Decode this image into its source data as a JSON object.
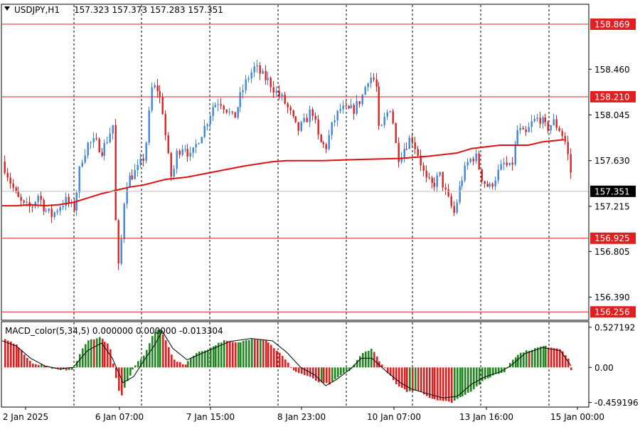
{
  "chart_data": {
    "type": "candlestick",
    "header": {
      "symbol": "USDJPY,H1",
      "ohlc": "157.323 157.373 157.283 157.351"
    },
    "price_axis": {
      "ticks": [
        "158.460",
        "158.045",
        "157.630",
        "157.215",
        "156.805",
        "156.390"
      ],
      "ylim": [
        156.18,
        159.05
      ]
    },
    "time_axis": {
      "labels": [
        "2 Jan 2025",
        "6 Jan 07:00",
        "7 Jan 15:00",
        "8 Jan 23:00",
        "10 Jan 07:00",
        "13 Jan 16:00",
        "15 Jan 00:00"
      ]
    },
    "levels": [
      {
        "value": 158.869,
        "label": "158.869"
      },
      {
        "value": 158.21,
        "label": "158.210"
      },
      {
        "value": 156.925,
        "label": "156.925"
      },
      {
        "value": 156.256,
        "label": "156.256"
      }
    ],
    "current_price": {
      "value": 157.351,
      "label": "157.351"
    },
    "colors": {
      "bull": "#3d85e0",
      "bear": "#e02020",
      "level": "#e02020",
      "ma": "#dd1111",
      "macd_up": "#1a8c1a",
      "macd_down": "#e02020",
      "signal": "#000000",
      "grid": "#000000"
    },
    "ma_points": [
      [
        0,
        157.22
      ],
      [
        20,
        157.22
      ],
      [
        40,
        157.23
      ],
      [
        60,
        157.22
      ],
      [
        80,
        157.23
      ],
      [
        100,
        157.25
      ],
      [
        120,
        157.29
      ],
      [
        140,
        157.33
      ],
      [
        160,
        157.36
      ],
      [
        180,
        157.39
      ],
      [
        200,
        157.41
      ],
      [
        230,
        157.46
      ],
      [
        260,
        157.48
      ],
      [
        300,
        157.53
      ],
      [
        340,
        157.58
      ],
      [
        380,
        157.62
      ],
      [
        400,
        157.63
      ],
      [
        450,
        157.63
      ],
      [
        500,
        157.64
      ],
      [
        560,
        157.65
      ],
      [
        600,
        157.67
      ],
      [
        640,
        157.7
      ],
      [
        660,
        157.74
      ],
      [
        700,
        157.77
      ],
      [
        740,
        157.77
      ],
      [
        760,
        157.8
      ],
      [
        790,
        157.82
      ]
    ],
    "price_path": [
      [
        0,
        157.62
      ],
      [
        10,
        157.45
      ],
      [
        20,
        157.3
      ],
      [
        30,
        157.22
      ],
      [
        40,
        157.2
      ],
      [
        50,
        157.32
      ],
      [
        60,
        157.18
      ],
      [
        70,
        157.13
      ],
      [
        80,
        157.22
      ],
      [
        90,
        157.27
      ],
      [
        100,
        157.18
      ],
      [
        105,
        157.38
      ],
      [
        110,
        157.62
      ],
      [
        120,
        157.78
      ],
      [
        130,
        157.8
      ],
      [
        140,
        157.72
      ],
      [
        150,
        157.86
      ],
      [
        155,
        157.98
      ],
      [
        158,
        157.2
      ],
      [
        162,
        156.7
      ],
      [
        165,
        156.55
      ],
      [
        168,
        157.15
      ],
      [
        175,
        157.45
      ],
      [
        190,
        157.55
      ],
      [
        200,
        157.68
      ],
      [
        205,
        158.0
      ],
      [
        210,
        158.3
      ],
      [
        218,
        158.28
      ],
      [
        225,
        158.1
      ],
      [
        232,
        157.7
      ],
      [
        238,
        157.45
      ],
      [
        245,
        157.7
      ],
      [
        255,
        157.78
      ],
      [
        265,
        157.65
      ],
      [
        275,
        157.82
      ],
      [
        285,
        157.95
      ],
      [
        295,
        158.12
      ],
      [
        305,
        158.18
      ],
      [
        315,
        158.1
      ],
      [
        325,
        158.0
      ],
      [
        335,
        158.22
      ],
      [
        345,
        158.38
      ],
      [
        355,
        158.48
      ],
      [
        365,
        158.4
      ],
      [
        375,
        158.35
      ],
      [
        385,
        158.25
      ],
      [
        395,
        158.18
      ],
      [
        405,
        158.05
      ],
      [
        415,
        157.9
      ],
      [
        425,
        157.98
      ],
      [
        435,
        158.1
      ],
      [
        445,
        157.8
      ],
      [
        455,
        157.75
      ],
      [
        465,
        157.98
      ],
      [
        475,
        158.1
      ],
      [
        485,
        158.08
      ],
      [
        495,
        158.1
      ],
      [
        505,
        158.2
      ],
      [
        515,
        158.4
      ],
      [
        525,
        158.35
      ],
      [
        530,
        157.85
      ],
      [
        538,
        158.02
      ],
      [
        545,
        158.12
      ],
      [
        550,
        157.95
      ],
      [
        555,
        157.65
      ],
      [
        565,
        157.75
      ],
      [
        575,
        157.85
      ],
      [
        585,
        157.68
      ],
      [
        595,
        157.45
      ],
      [
        605,
        157.4
      ],
      [
        615,
        157.5
      ],
      [
        625,
        157.3
      ],
      [
        635,
        157.15
      ],
      [
        645,
        157.45
      ],
      [
        655,
        157.62
      ],
      [
        665,
        157.68
      ],
      [
        675,
        157.45
      ],
      [
        685,
        157.38
      ],
      [
        695,
        157.5
      ],
      [
        705,
        157.6
      ],
      [
        715,
        157.55
      ],
      [
        725,
        157.92
      ],
      [
        735,
        157.85
      ],
      [
        745,
        157.98
      ],
      [
        755,
        158.02
      ],
      [
        765,
        157.92
      ],
      [
        775,
        157.98
      ],
      [
        785,
        157.9
      ],
      [
        792,
        157.78
      ],
      [
        798,
        157.55
      ],
      [
        803,
        157.35
      ]
    ],
    "macd": {
      "label": "MACD_color(5,34,5) 0.000000 0.000000 -0.013304",
      "ticks": [
        "0.527192",
        "0.00",
        "-0.459196"
      ],
      "ylim": [
        -0.52,
        0.6
      ],
      "histogram": [
        [
          0,
          0.38
        ],
        [
          20,
          0.3
        ],
        [
          40,
          0.06
        ],
        [
          60,
          0.02
        ],
        [
          80,
          -0.04
        ],
        [
          100,
          -0.02
        ],
        [
          110,
          0.22
        ],
        [
          120,
          0.35
        ],
        [
          135,
          0.4
        ],
        [
          150,
          0.3
        ],
        [
          158,
          -0.1
        ],
        [
          165,
          -0.4
        ],
        [
          175,
          -0.18
        ],
        [
          185,
          0.02
        ],
        [
          200,
          0.18
        ],
        [
          210,
          0.42
        ],
        [
          220,
          0.52
        ],
        [
          230,
          0.35
        ],
        [
          240,
          0.1
        ],
        [
          255,
          0.03
        ],
        [
          270,
          0.18
        ],
        [
          290,
          0.25
        ],
        [
          310,
          0.35
        ],
        [
          330,
          0.32
        ],
        [
          350,
          0.38
        ],
        [
          370,
          0.36
        ],
        [
          390,
          0.18
        ],
        [
          410,
          -0.05
        ],
        [
          430,
          -0.12
        ],
        [
          445,
          -0.2
        ],
        [
          460,
          -0.22
        ],
        [
          475,
          -0.1
        ],
        [
          490,
          -0.02
        ],
        [
          505,
          0.18
        ],
        [
          518,
          0.25
        ],
        [
          530,
          0.08
        ],
        [
          540,
          -0.05
        ],
        [
          555,
          -0.25
        ],
        [
          570,
          -0.32
        ],
        [
          585,
          -0.3
        ],
        [
          600,
          -0.4
        ],
        [
          615,
          -0.43
        ],
        [
          630,
          -0.46
        ],
        [
          645,
          -0.38
        ],
        [
          660,
          -0.3
        ],
        [
          675,
          -0.18
        ],
        [
          690,
          -0.1
        ],
        [
          705,
          -0.06
        ],
        [
          715,
          0.1
        ],
        [
          730,
          0.2
        ],
        [
          745,
          0.24
        ],
        [
          760,
          0.28
        ],
        [
          775,
          0.26
        ],
        [
          785,
          0.24
        ],
        [
          795,
          0.12
        ],
        [
          801,
          -0.14
        ]
      ],
      "signal": [
        [
          0,
          0.35
        ],
        [
          20,
          0.28
        ],
        [
          40,
          0.12
        ],
        [
          60,
          0.02
        ],
        [
          80,
          -0.02
        ],
        [
          100,
          0.0
        ],
        [
          120,
          0.22
        ],
        [
          140,
          0.32
        ],
        [
          155,
          0.12
        ],
        [
          170,
          -0.2
        ],
        [
          185,
          -0.12
        ],
        [
          200,
          0.1
        ],
        [
          215,
          0.3
        ],
        [
          225,
          0.48
        ],
        [
          240,
          0.25
        ],
        [
          260,
          0.1
        ],
        [
          280,
          0.18
        ],
        [
          300,
          0.26
        ],
        [
          320,
          0.34
        ],
        [
          350,
          0.38
        ],
        [
          380,
          0.35
        ],
        [
          400,
          0.2
        ],
        [
          420,
          0.0
        ],
        [
          440,
          -0.1
        ],
        [
          455,
          -0.24
        ],
        [
          470,
          -0.16
        ],
        [
          490,
          -0.02
        ],
        [
          505,
          0.12
        ],
        [
          520,
          0.12
        ],
        [
          540,
          -0.05
        ],
        [
          560,
          -0.2
        ],
        [
          575,
          -0.28
        ],
        [
          600,
          -0.35
        ],
        [
          620,
          -0.4
        ],
        [
          640,
          -0.38
        ],
        [
          660,
          -0.22
        ],
        [
          680,
          -0.12
        ],
        [
          700,
          -0.06
        ],
        [
          715,
          0.02
        ],
        [
          735,
          0.18
        ],
        [
          760,
          0.26
        ],
        [
          785,
          0.22
        ],
        [
          800,
          0.02
        ]
      ]
    }
  }
}
